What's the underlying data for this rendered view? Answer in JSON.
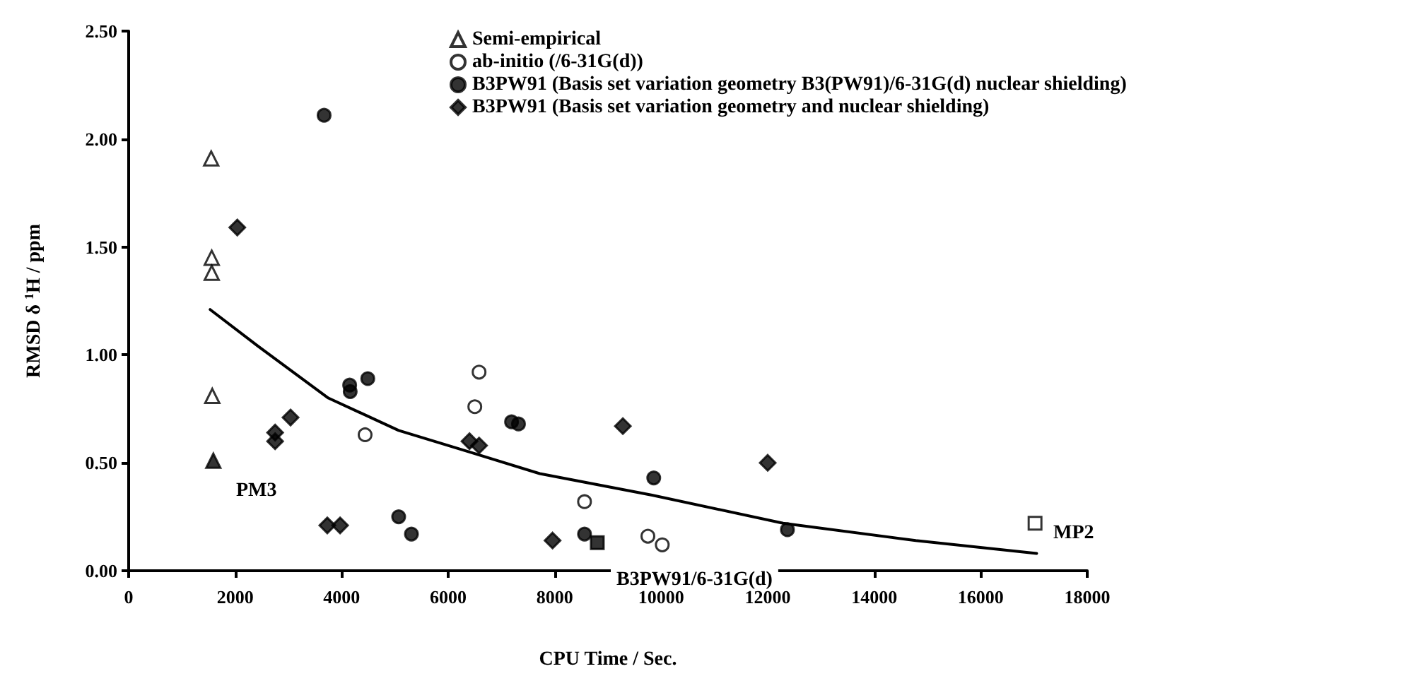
{
  "chart_data": {
    "type": "scatter",
    "xlabel": "CPU Time / Sec.",
    "ylabel": "RMSD δ $^{1}$H / ppm",
    "xlim": [
      0,
      18000
    ],
    "xticks": [
      0,
      2000,
      4000,
      6000,
      8000,
      10000,
      12000,
      14000,
      16000,
      18000
    ],
    "ylim": [
      0,
      2.5
    ],
    "yticks": [
      {
        "value": 0,
        "label": "0.00"
      },
      {
        "value": 0.5,
        "label": "0.50"
      },
      {
        "value": 1,
        "label": "1.00"
      },
      {
        "value": 1.5,
        "label": "1.50"
      },
      {
        "value": 2,
        "label": "2.00"
      },
      {
        "value": 2.5,
        "label": "2.50"
      }
    ],
    "grid": false,
    "legend": "top right",
    "series": [
      {
        "name": "Semi-empirical",
        "color": "#ffffff",
        "marker": "triangle",
        "x": [
          1550,
          1560,
          1560,
          1570
        ],
        "values": [
          1.91,
          1.45,
          1.38,
          0.81
        ]
      },
      {
        "name": "ab-initio (/6-31G(d))",
        "color": "#ffffff",
        "marker": "circle",
        "x": [
          4440,
          6580,
          6500,
          8560,
          9750,
          10020
        ],
        "values": [
          0.63,
          0.92,
          0.76,
          0.32,
          0.16,
          0.12
        ]
      },
      {
        "name": "B3PW91 (Basis set variation geometry B3(PW91)/6-31G(d) nuclear shielding)",
        "color": "#000000",
        "marker": "circle",
        "x": [
          3670,
          4150,
          4160,
          4490,
          5070,
          5310,
          7190,
          7320,
          8560,
          9860,
          12370
        ],
        "values": [
          2.11,
          0.86,
          0.83,
          0.89,
          0.25,
          0.17,
          0.69,
          0.68,
          0.17,
          0.43,
          0.19
        ]
      },
      {
        "name": "B3PW91 (Basis set variation geometry and nuclear shielding)",
        "color": "#000000",
        "marker": "diamond",
        "x": [
          2040,
          3040,
          2750,
          2750,
          3730,
          3970,
          6400,
          6580,
          9280,
          12000,
          7960
        ],
        "values": [
          1.59,
          0.71,
          0.64,
          0.6,
          0.21,
          0.21,
          0.6,
          0.58,
          0.67,
          0.5,
          0.14
        ]
      },
      {
        "color": "#000000",
        "marker": "triangle",
        "x": [
          1590
        ],
        "values": [
          0.51
        ]
      },
      {
        "color": "#000000",
        "marker": "square",
        "x": [
          8800
        ],
        "values": [
          0.13
        ]
      },
      {
        "color": "#ffffff",
        "marker": "square",
        "x": [
          17020
        ],
        "values": [
          0.22
        ]
      },
      {
        "type": "line",
        "color": "#000000",
        "marker": "none",
        "line_style": "solid",
        "x": [
          1530,
          2430,
          3750,
          5070,
          6400,
          7720,
          9830,
          12290,
          14780,
          17050
        ],
        "values": [
          1.21,
          1.04,
          0.8,
          0.65,
          0.55,
          0.45,
          0.35,
          0.22,
          0.14,
          0.08
        ]
      }
    ],
    "annotations": [
      "PM3",
      "MP2",
      "B3PW91/6-31G(d)"
    ]
  }
}
